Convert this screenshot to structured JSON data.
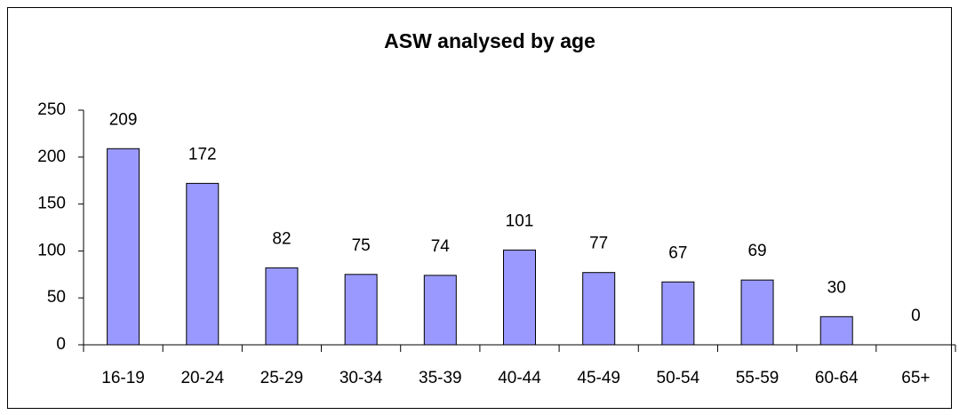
{
  "chart_data": {
    "type": "bar",
    "title": "ASW analysed by age",
    "categories": [
      "16-19",
      "20-24",
      "25-29",
      "30-34",
      "35-39",
      "40-44",
      "45-49",
      "50-54",
      "55-59",
      "60-64",
      "65+"
    ],
    "values": [
      209,
      172,
      82,
      75,
      74,
      101,
      77,
      67,
      69,
      30,
      0
    ],
    "color": "#9999ff",
    "ylim": [
      0,
      250
    ],
    "yticks": [
      0,
      50,
      100,
      150,
      200,
      250
    ],
    "grid": false
  }
}
